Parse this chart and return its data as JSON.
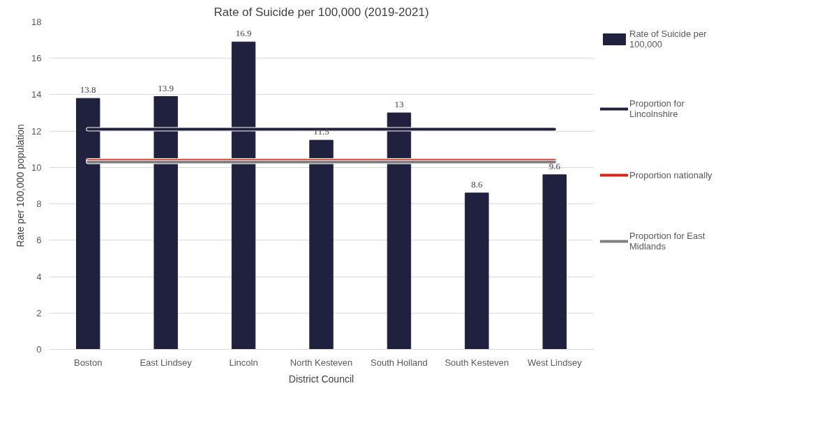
{
  "chart_data": {
    "type": "bar",
    "title": "Rate of Suicide per 100,000 (2019-2021)",
    "xlabel": "District Council",
    "ylabel": "Rate per 100,000 population",
    "categories": [
      "Boston",
      "East Lindsey",
      "Lincoln",
      "North Kesteven",
      "South Holland",
      "South Kesteven",
      "West Lindsey"
    ],
    "series": [
      {
        "name": "Rate of Suicide per 100,000",
        "color": "#20213f",
        "values": [
          13.8,
          13.9,
          16.9,
          11.5,
          13,
          8.6,
          9.6
        ],
        "value_labels": [
          "13.8",
          "13.9",
          "16.9",
          "11.5",
          "13",
          "8.6",
          "9.6"
        ]
      },
      {
        "name": "Proportion for Lincolnshire",
        "type": "line",
        "color": "#20213f",
        "values": [
          12.1,
          12.1,
          12.1,
          12.1,
          12.1,
          12.1,
          12.1
        ]
      },
      {
        "name": "Proportion nationally",
        "type": "line",
        "color": "#d9261c",
        "values": [
          10.4,
          10.4,
          10.4,
          10.4,
          10.4,
          10.4,
          10.4
        ]
      },
      {
        "name": "Proportion for East Midlands",
        "type": "line",
        "color": "#7f7f7f",
        "values": [
          10.3,
          10.3,
          10.3,
          10.3,
          10.3,
          10.3,
          10.3
        ]
      }
    ],
    "ylim": [
      0,
      18
    ],
    "yticks": [
      0,
      2,
      4,
      6,
      8,
      10,
      12,
      14,
      16,
      18
    ],
    "grid": "y",
    "legend": "right"
  }
}
